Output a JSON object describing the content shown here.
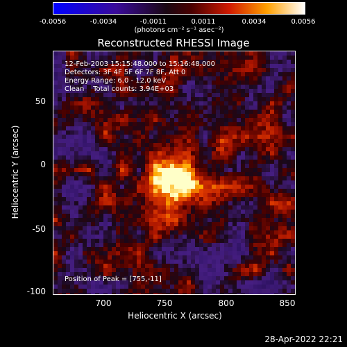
{
  "chart_data": {
    "type": "heatmap",
    "title": "Reconstructed RHESSI Image",
    "xlabel": "Heliocentric X (arcsec)",
    "ylabel": "Heliocentric Y (arcsec)",
    "xlim": [
      660,
      852
    ],
    "ylim": [
      -103,
      90
    ],
    "x_ticks": [
      700,
      750,
      800,
      850
    ],
    "y_ticks": [
      50,
      0,
      -50,
      -100
    ],
    "colorbar": {
      "ticks": [
        "-0.0056",
        "-0.0034",
        "-0.0011",
        "0.0011",
        "0.0034",
        "0.0056"
      ],
      "range": [
        -0.0056,
        0.0056
      ],
      "units": "(photons cm⁻² s⁻¹ asec⁻²)"
    },
    "annotations": {
      "time": "12-Feb-2003 15:15:48.000 to 15:16:48.000",
      "detectors": "Detectors: 3F 4F 5F 6F 7F 8F, Att 0",
      "energy": "Energy Range: 6.0 - 12.0 keV",
      "clean": "Clean    Total counts: 3.94E+03",
      "peak": "Position of Peak = [755,-11]"
    },
    "peak": [
      755,
      -11
    ],
    "timestamp": "28-Apr-2022 22:21"
  }
}
